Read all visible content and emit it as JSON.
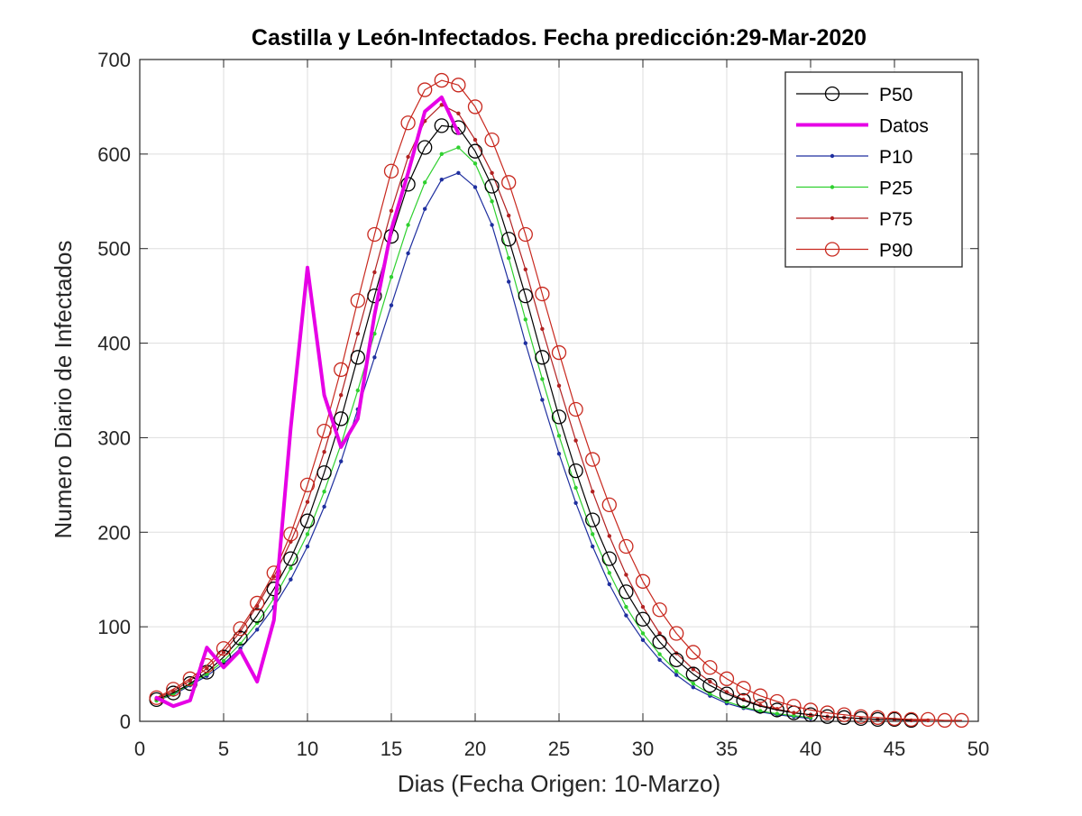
{
  "chart_data": {
    "type": "line",
    "title": "Castilla y León-Infectados. Fecha predicción:29-Mar-2020",
    "xlabel": "Dias (Fecha Origen: 10-Marzo)",
    "ylabel": "Numero Diario de Infectados",
    "xlim": [
      0,
      50
    ],
    "ylim": [
      0,
      700
    ],
    "xticks": [
      0,
      5,
      10,
      15,
      20,
      25,
      30,
      35,
      40,
      45,
      50
    ],
    "yticks": [
      0,
      100,
      200,
      300,
      400,
      500,
      600,
      700
    ],
    "grid": true,
    "legend_position": "top-right",
    "series": [
      {
        "name": "P50",
        "color": "#000000",
        "width": 1.2,
        "marker": "circle-open",
        "marker_size": 7.5,
        "x": [
          1,
          2,
          3,
          4,
          5,
          6,
          7,
          8,
          9,
          10,
          11,
          12,
          13,
          14,
          15,
          16,
          17,
          18,
          19,
          20,
          21,
          22,
          23,
          24,
          25,
          26,
          27,
          28,
          29,
          30,
          31,
          32,
          33,
          34,
          35,
          36,
          37,
          38,
          39,
          40,
          41,
          42,
          43,
          44,
          45,
          46
        ],
        "y": [
          23,
          30,
          40,
          52,
          68,
          88,
          112,
          140,
          172,
          212,
          263,
          320,
          385,
          450,
          513,
          568,
          607,
          630,
          628,
          603,
          566,
          510,
          450,
          385,
          322,
          265,
          213,
          172,
          137,
          108,
          84,
          65,
          50,
          38,
          29,
          22,
          16,
          12,
          9,
          7,
          5,
          4,
          3,
          2,
          2,
          1
        ]
      },
      {
        "name": "Datos",
        "color": "#e600e6",
        "width": 4,
        "marker": "none",
        "x": [
          1,
          2,
          3,
          4,
          5,
          6,
          7,
          8,
          9,
          10,
          11,
          12,
          13,
          14,
          15,
          16,
          17,
          18,
          19
        ],
        "y": [
          25,
          16,
          22,
          78,
          57,
          75,
          42,
          107,
          310,
          480,
          345,
          290,
          320,
          430,
          520,
          580,
          645,
          660,
          622
        ]
      },
      {
        "name": "P10",
        "color": "#1f2f9f",
        "width": 1.2,
        "marker": "dot",
        "marker_size": 2.2,
        "x": [
          1,
          2,
          3,
          4,
          5,
          6,
          7,
          8,
          9,
          10,
          11,
          12,
          13,
          14,
          15,
          16,
          17,
          18,
          19,
          20,
          21,
          22,
          23,
          24,
          25,
          26,
          27,
          28,
          29,
          30,
          31,
          32,
          33,
          34,
          35,
          36,
          37,
          38,
          39,
          40
        ],
        "y": [
          22,
          28,
          38,
          48,
          61,
          77,
          97,
          121,
          150,
          185,
          227,
          275,
          330,
          385,
          440,
          495,
          542,
          573,
          580,
          565,
          525,
          465,
          400,
          340,
          283,
          231,
          185,
          145,
          112,
          86,
          65,
          49,
          36,
          27,
          19,
          14,
          10,
          7,
          5,
          3
        ]
      },
      {
        "name": "P25",
        "color": "#2fd02f",
        "width": 1.2,
        "marker": "dot",
        "marker_size": 2.2,
        "x": [
          1,
          2,
          3,
          4,
          5,
          6,
          7,
          8,
          9,
          10,
          11,
          12,
          13,
          14,
          15,
          16,
          17,
          18,
          19,
          20,
          21,
          22,
          23,
          24,
          25,
          26,
          27,
          28,
          29,
          30,
          31,
          32,
          33,
          34,
          35,
          36,
          37,
          38,
          39,
          40
        ],
        "y": [
          22,
          29,
          39,
          50,
          64,
          82,
          104,
          130,
          162,
          198,
          243,
          293,
          350,
          410,
          470,
          525,
          570,
          600,
          607,
          590,
          550,
          490,
          425,
          362,
          302,
          247,
          198,
          157,
          121,
          93,
          71,
          53,
          40,
          29,
          21,
          15,
          11,
          8,
          6,
          4
        ]
      },
      {
        "name": "P75",
        "color": "#b22222",
        "width": 1.2,
        "marker": "dot",
        "marker_size": 2.2,
        "x": [
          1,
          2,
          3,
          4,
          5,
          6,
          7,
          8,
          9,
          10,
          11,
          12,
          13,
          14,
          15,
          16,
          17,
          18,
          19,
          20,
          21,
          22,
          23,
          24,
          25,
          26,
          27,
          28,
          29,
          30,
          31,
          32,
          33,
          34,
          35,
          36,
          37,
          38,
          39,
          40,
          41,
          42,
          43,
          44,
          45,
          46,
          47
        ],
        "y": [
          24,
          32,
          43,
          56,
          73,
          95,
          122,
          153,
          190,
          232,
          285,
          345,
          410,
          475,
          540,
          597,
          635,
          652,
          643,
          615,
          580,
          535,
          478,
          415,
          355,
          297,
          243,
          196,
          155,
          121,
          93,
          72,
          55,
          42,
          31,
          23,
          17,
          13,
          9,
          7,
          5,
          4,
          3,
          2,
          2,
          1,
          1
        ]
      },
      {
        "name": "P90",
        "color": "#c8281e",
        "width": 1.2,
        "marker": "circle-open",
        "marker_size": 7.5,
        "x": [
          1,
          2,
          3,
          4,
          5,
          6,
          7,
          8,
          9,
          10,
          11,
          12,
          13,
          14,
          15,
          16,
          17,
          18,
          19,
          20,
          21,
          22,
          23,
          24,
          25,
          26,
          27,
          28,
          29,
          30,
          31,
          32,
          33,
          34,
          35,
          36,
          37,
          38,
          39,
          40,
          41,
          42,
          43,
          44,
          45,
          46,
          47,
          48,
          49
        ],
        "y": [
          25,
          34,
          45,
          59,
          77,
          98,
          125,
          157,
          198,
          250,
          307,
          372,
          445,
          515,
          582,
          633,
          668,
          678,
          673,
          650,
          615,
          570,
          515,
          452,
          390,
          330,
          277,
          229,
          185,
          148,
          118,
          93,
          73,
          57,
          45,
          35,
          27,
          21,
          16,
          12,
          9,
          7,
          5,
          4,
          3,
          2,
          2,
          1,
          1
        ]
      }
    ]
  }
}
